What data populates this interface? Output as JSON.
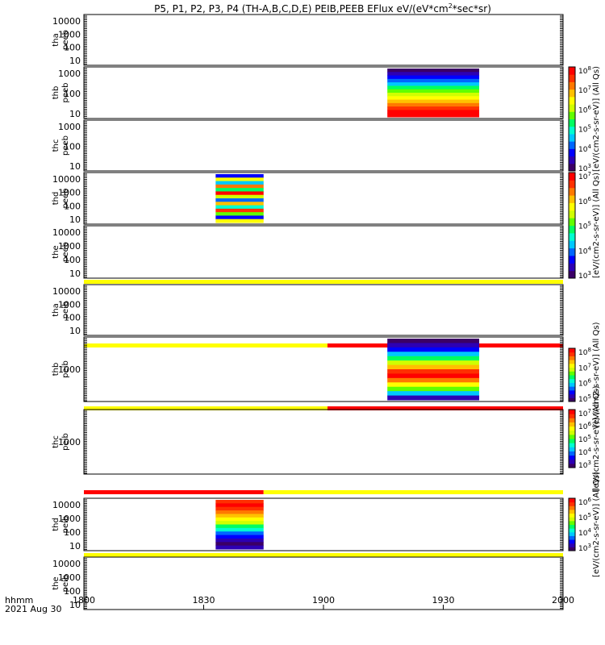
{
  "chart_data": {
    "type": "heatmap",
    "title_main": "P5, P1, P2, P3, P4 (TH-A,B,C,D,E) PEIB,PEEB EFlux eV/(eV*cm",
    "title_sup": "2",
    "title_tail": "*sec*sr)",
    "x_axis": {
      "range_hhmm": [
        "18:00",
        "20:00"
      ],
      "ticks": [
        "1800",
        "1830",
        "1900",
        "1930",
        "2000"
      ],
      "corner_label": "hhmm",
      "date_label": "2021 Aug 30"
    },
    "panels": [
      {
        "id": "tha_peeb",
        "probe": "tha",
        "instr": "peeb",
        "y_ticks": [
          "10",
          "100",
          "1000",
          "10000"
        ],
        "data_present": false
      },
      {
        "id": "thb_peeb",
        "probe": "thb",
        "instr": "peeb",
        "y_ticks": [
          "10",
          "100",
          "1000"
        ],
        "data_present": true,
        "time_range": [
          "19:16",
          "19:39"
        ]
      },
      {
        "id": "thc_peeb",
        "probe": "thc",
        "instr": "peeb",
        "y_ticks": [
          "10",
          "100",
          "1000"
        ],
        "data_present": false
      },
      {
        "id": "thd_peeb",
        "probe": "thd",
        "instr": "peeb",
        "y_ticks": [
          "10",
          "100",
          "1000",
          "10000"
        ],
        "data_present": true,
        "time_range": [
          "18:33",
          "18:45"
        ]
      },
      {
        "id": "the_peeb",
        "probe": "the",
        "instr": "peeb",
        "y_ticks": [
          "10",
          "100",
          "1000",
          "10000"
        ],
        "data_present": false
      },
      {
        "id": "tha_peib",
        "probe": "tha",
        "instr": "peib",
        "y_ticks": [
          "10",
          "100",
          "1000",
          "10000"
        ],
        "data_present": false
      },
      {
        "id": "thb_peib",
        "probe": "thb",
        "instr": "peib",
        "y_ticks": [
          "1000"
        ],
        "data_present": true,
        "time_range": [
          "19:16",
          "19:39"
        ]
      },
      {
        "id": "thc_peib",
        "probe": "thc",
        "instr": "peib",
        "y_ticks": [
          "1000"
        ],
        "data_present": false
      },
      {
        "id": "thd_peib",
        "probe": "thd",
        "instr": "peib",
        "y_ticks": [
          "10",
          "100",
          "1000",
          "10000"
        ],
        "data_present": true,
        "time_range": [
          "18:33",
          "18:45"
        ]
      },
      {
        "id": "the_peib",
        "probe": "the",
        "instr": "peib",
        "y_ticks": [
          "10",
          "100",
          "1000",
          "10000"
        ],
        "data_present": false
      }
    ],
    "colorbars": [
      {
        "panel": "thb_peeb",
        "ticks": [
          "10^3",
          "10^4",
          "10^5",
          "10^6",
          "10^7",
          "10^8"
        ],
        "label": "[eV/(cm2-s-sr-eV)] (All Qs)"
      },
      {
        "panel": "thd_peeb",
        "ticks": [
          "10^3",
          "10^4",
          "10^5",
          "10^6",
          "10^7"
        ],
        "label": "[eV/(cm2-s-sr-eV)] (All Qs)"
      },
      {
        "panel": "thb_peib",
        "ticks": [
          "10^5",
          "10^6",
          "10^7",
          "10^8"
        ],
        "label": "[eV/(cm2-s-sr-eV)] (All Qs)"
      },
      {
        "panel": "thc_peib",
        "ticks": [
          "10^3",
          "10^4",
          "10^5",
          "10^6",
          "10^7"
        ],
        "label": "[eV/(cm2-s-sr-eV)] (All Qs)"
      },
      {
        "panel": "thd_peib",
        "ticks": [
          "10^3",
          "10^4",
          "10^5",
          "10^6"
        ],
        "label": "[eV/(cm2-s-sr-eV)] (All Qs)"
      }
    ],
    "status_bars": [
      {
        "before_panel": "tha_peib",
        "segments": [
          {
            "from": "18:00",
            "to": "20:00",
            "color": "#ffff00"
          }
        ]
      },
      {
        "before_panel": "thb_peib",
        "segments": [
          {
            "from": "18:00",
            "to": "19:01",
            "color": "#ffff00"
          },
          {
            "from": "19:01",
            "to": "20:00",
            "color": "#ff0000"
          }
        ]
      },
      {
        "before_panel": "thc_peib",
        "segments": [
          {
            "from": "18:00",
            "to": "19:01",
            "color": "#ffff00"
          },
          {
            "from": "19:01",
            "to": "20:00",
            "color": "#ff0000"
          }
        ]
      },
      {
        "before_panel": "thd_peib",
        "segments": [
          {
            "from": "18:00",
            "to": "18:45",
            "color": "#ff0000"
          },
          {
            "from": "18:45",
            "to": "20:00",
            "color": "#ffff00"
          }
        ]
      },
      {
        "before_panel": "the_peib",
        "segments": [
          {
            "from": "18:00",
            "to": "20:00",
            "color": "#ffff00"
          }
        ]
      },
      {
        "before_panel": "tha_peeb",
        "segments": []
      },
      {
        "before_panel": "the_peeb_after",
        "segments": [
          {
            "from": "18:00",
            "to": "20:00",
            "color": "#ffff00"
          }
        ]
      }
    ]
  }
}
